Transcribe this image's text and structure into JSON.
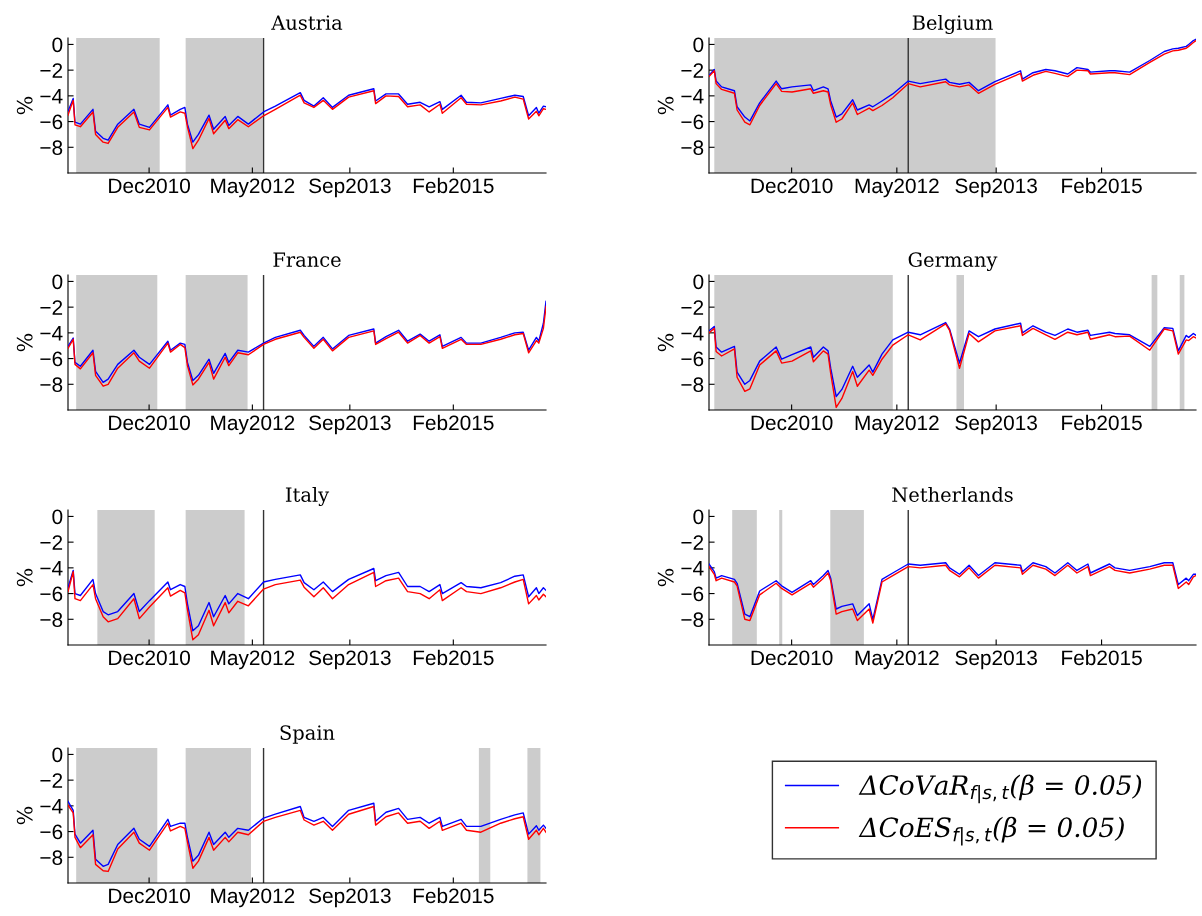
{
  "chart_data": [
    {
      "type": "line",
      "title": "Austria",
      "ylabel": "%",
      "xlim": [
        "2009-10-21",
        "2016-05-10"
      ],
      "ylim": [
        -10,
        0.5
      ],
      "xticks": [
        {
          "value": "2010-12-01",
          "label": "Dec2010"
        },
        {
          "value": "2012-05-01",
          "label": "May2012"
        },
        {
          "value": "2013-09-01",
          "label": "Sep2013"
        },
        {
          "value": "2015-02-01",
          "label": "Feb2015"
        }
      ],
      "yticks": [
        {
          "value": 0,
          "label": "0"
        },
        {
          "value": -2,
          "label": "−2"
        },
        {
          "value": -4,
          "label": "−4"
        },
        {
          "value": -6,
          "label": "−6"
        },
        {
          "value": -8,
          "label": "−8"
        }
      ],
      "grid": false,
      "legend": false,
      "x": [
        "2009-10-21",
        "2009-11-16",
        "2009-11-25",
        "2009-12-22",
        "2010-02-23",
        "2010-03-08",
        "2010-04-15",
        "2010-05-10",
        "2010-06-27",
        "2010-09-16",
        "2010-10-13",
        "2010-12-03",
        "2011-03-05",
        "2011-03-18",
        "2011-05-06",
        "2011-05-29",
        "2011-06-11",
        "2011-07-08",
        "2011-08-05",
        "2011-09-27",
        "2011-10-20",
        "2011-12-17",
        "2012-01-04",
        "2012-02-18",
        "2012-04-11",
        "2012-06-26",
        "2012-08-24",
        "2012-12-27",
        "2013-01-15",
        "2013-03-05",
        "2013-04-21",
        "2013-06-06",
        "2013-08-26",
        "2013-12-30",
        "2014-01-08",
        "2014-03-01",
        "2014-05-03",
        "2014-06-17",
        "2014-08-19",
        "2014-10-03",
        "2014-11-26",
        "2014-12-08",
        "2015-03-12",
        "2015-04-08",
        "2015-06-19",
        "2015-09-26",
        "2015-12-06",
        "2016-01-17",
        "2016-02-13",
        "2016-03-23",
        "2016-04-04",
        "2016-04-27",
        "2016-05-10"
      ],
      "bands": [
        {
          "axis": "x",
          "from": "2009-12-01",
          "to": "2011-01-23",
          "color": "#cccccc"
        },
        {
          "axis": "x",
          "from": "2011-06-02",
          "to": "2012-06-22",
          "color": "#cccccc"
        }
      ],
      "ref_lines": [
        {
          "axis": "x",
          "value": "2012-06-26",
          "color": "#333333"
        }
      ],
      "series": [
        {
          "color": "#0000ff",
          "values": [
            -5.2,
            -4.2,
            -6.05,
            -6.2,
            -5.05,
            -6.75,
            -7.3,
            -7.45,
            -6.2,
            -5.05,
            -6.2,
            -6.45,
            -4.7,
            -5.5,
            -5.05,
            -4.9,
            -6.2,
            -7.6,
            -7.0,
            -5.5,
            -6.6,
            -5.6,
            -6.3,
            -5.6,
            -6.2,
            -5.25,
            -4.8,
            -3.75,
            -4.35,
            -4.8,
            -4.15,
            -4.9,
            -3.95,
            -3.45,
            -4.4,
            -3.85,
            -3.85,
            -4.65,
            -4.5,
            -4.85,
            -4.45,
            -5.05,
            -3.95,
            -4.5,
            -4.55,
            -4.2,
            -3.95,
            -4.05,
            -5.55,
            -4.9,
            -5.35,
            -4.8,
            -4.85
          ]
        },
        {
          "color": "#ff0000",
          "values": [
            -5.5,
            -4.35,
            -6.25,
            -6.4,
            -5.25,
            -7.0,
            -7.6,
            -7.7,
            -6.45,
            -5.25,
            -6.45,
            -6.65,
            -4.9,
            -5.65,
            -5.25,
            -5.35,
            -6.4,
            -8.1,
            -7.45,
            -5.75,
            -6.95,
            -5.9,
            -6.55,
            -5.85,
            -6.4,
            -5.55,
            -5.05,
            -3.95,
            -4.55,
            -4.9,
            -4.35,
            -5.05,
            -4.1,
            -3.6,
            -4.6,
            -4.0,
            -4.05,
            -4.85,
            -4.7,
            -5.25,
            -4.65,
            -5.35,
            -4.15,
            -4.65,
            -4.7,
            -4.4,
            -4.1,
            -4.25,
            -5.8,
            -5.2,
            -5.55,
            -5.0,
            -5.05
          ]
        }
      ]
    },
    {
      "type": "line",
      "title": "Belgium",
      "ylabel": "%",
      "xlim": [
        "2009-10-21",
        "2016-05-10"
      ],
      "ylim": [
        -10,
        0.5
      ],
      "xticks": [
        {
          "value": "2010-12-01",
          "label": "Dec2010"
        },
        {
          "value": "2012-05-01",
          "label": "May2012"
        },
        {
          "value": "2013-09-01",
          "label": "Sep2013"
        },
        {
          "value": "2015-02-01",
          "label": "Feb2015"
        }
      ],
      "yticks": [
        {
          "value": 0,
          "label": "0"
        },
        {
          "value": -2,
          "label": "−2"
        },
        {
          "value": -4,
          "label": "−4"
        },
        {
          "value": -6,
          "label": "−6"
        },
        {
          "value": -8,
          "label": "−8"
        }
      ],
      "grid": false,
      "legend": false,
      "x": [
        "2009-10-21",
        "2009-11-16",
        "2009-11-25",
        "2009-12-22",
        "2010-02-23",
        "2010-03-08",
        "2010-04-15",
        "2010-05-10",
        "2010-06-27",
        "2010-09-16",
        "2010-10-13",
        "2010-12-03",
        "2011-03-05",
        "2011-03-18",
        "2011-05-06",
        "2011-05-29",
        "2011-06-11",
        "2011-07-08",
        "2011-08-05",
        "2011-09-27",
        "2011-10-20",
        "2011-12-17",
        "2012-01-04",
        "2012-02-18",
        "2012-04-11",
        "2012-06-26",
        "2012-08-24",
        "2012-12-27",
        "2013-01-15",
        "2013-03-05",
        "2013-04-21",
        "2013-06-06",
        "2013-08-26",
        "2013-12-30",
        "2014-01-08",
        "2014-03-01",
        "2014-05-03",
        "2014-06-17",
        "2014-08-19",
        "2014-10-03",
        "2014-11-26",
        "2014-12-08",
        "2015-03-12",
        "2015-04-08",
        "2015-06-19",
        "2015-09-26",
        "2015-12-06",
        "2016-01-17",
        "2016-02-13",
        "2016-03-23",
        "2016-04-04",
        "2016-04-27",
        "2016-05-10"
      ],
      "bands": [
        {
          "axis": "x",
          "from": "2009-11-16",
          "to": "2013-08-29",
          "color": "#cccccc"
        }
      ],
      "ref_lines": [
        {
          "axis": "x",
          "value": "2012-06-26",
          "color": "#333333"
        }
      ],
      "series": [
        {
          "color": "#0000ff",
          "values": [
            -2.4,
            -1.95,
            -2.85,
            -3.3,
            -3.6,
            -4.85,
            -5.65,
            -5.95,
            -4.55,
            -2.85,
            -3.45,
            -3.3,
            -3.15,
            -3.6,
            -3.3,
            -3.45,
            -4.4,
            -5.65,
            -5.4,
            -4.3,
            -5.1,
            -4.7,
            -4.85,
            -4.4,
            -3.85,
            -2.85,
            -3.05,
            -2.7,
            -2.95,
            -3.1,
            -2.95,
            -3.6,
            -2.9,
            -2.05,
            -2.7,
            -2.2,
            -1.95,
            -2.05,
            -2.3,
            -1.8,
            -1.95,
            -2.15,
            -2.05,
            -2.05,
            -2.15,
            -1.25,
            -0.55,
            -0.35,
            -0.3,
            -0.15,
            0.0,
            0.3,
            0.4
          ]
        },
        {
          "color": "#ff0000",
          "values": [
            -2.5,
            -2.05,
            -3.05,
            -3.5,
            -3.8,
            -5.1,
            -6.05,
            -6.25,
            -4.75,
            -3.05,
            -3.65,
            -3.7,
            -3.45,
            -3.8,
            -3.6,
            -3.7,
            -4.7,
            -6.05,
            -5.8,
            -4.55,
            -5.45,
            -4.95,
            -5.15,
            -4.75,
            -4.15,
            -3.05,
            -3.3,
            -2.9,
            -3.15,
            -3.3,
            -3.15,
            -3.8,
            -3.1,
            -2.25,
            -2.85,
            -2.4,
            -2.1,
            -2.25,
            -2.5,
            -2.0,
            -2.05,
            -2.3,
            -2.2,
            -2.2,
            -2.35,
            -1.4,
            -0.75,
            -0.5,
            -0.45,
            -0.3,
            -0.15,
            0.15,
            0.3
          ]
        }
      ]
    },
    {
      "type": "line",
      "title": "France",
      "ylabel": "%",
      "xlim": [
        "2009-10-21",
        "2016-05-10"
      ],
      "ylim": [
        -10,
        0.5
      ],
      "xticks": [
        {
          "value": "2010-12-01",
          "label": "Dec2010"
        },
        {
          "value": "2012-05-01",
          "label": "May2012"
        },
        {
          "value": "2013-09-01",
          "label": "Sep2013"
        },
        {
          "value": "2015-02-01",
          "label": "Feb2015"
        }
      ],
      "yticks": [
        {
          "value": 0,
          "label": "0"
        },
        {
          "value": -2,
          "label": "−2"
        },
        {
          "value": -4,
          "label": "−4"
        },
        {
          "value": -6,
          "label": "−6"
        },
        {
          "value": -8,
          "label": "−8"
        }
      ],
      "grid": false,
      "legend": false,
      "x": [
        "2009-10-21",
        "2009-11-16",
        "2009-11-25",
        "2009-12-22",
        "2010-02-23",
        "2010-03-08",
        "2010-04-15",
        "2010-05-10",
        "2010-06-27",
        "2010-09-16",
        "2010-10-13",
        "2010-12-03",
        "2011-03-05",
        "2011-03-18",
        "2011-05-06",
        "2011-05-29",
        "2011-06-11",
        "2011-07-08",
        "2011-08-05",
        "2011-09-27",
        "2011-10-20",
        "2011-12-17",
        "2012-01-04",
        "2012-02-18",
        "2012-04-11",
        "2012-06-26",
        "2012-08-24",
        "2012-12-27",
        "2013-01-15",
        "2013-03-05",
        "2013-04-21",
        "2013-06-06",
        "2013-08-26",
        "2013-12-30",
        "2014-01-08",
        "2014-03-01",
        "2014-05-03",
        "2014-06-17",
        "2014-08-19",
        "2014-10-03",
        "2014-11-26",
        "2014-12-08",
        "2015-03-12",
        "2015-04-08",
        "2015-06-19",
        "2015-09-26",
        "2015-12-06",
        "2016-01-17",
        "2016-02-13",
        "2016-03-23",
        "2016-04-04",
        "2016-04-27",
        "2016-05-10"
      ],
      "bands": [
        {
          "axis": "x",
          "from": "2009-12-01",
          "to": "2011-01-11",
          "color": "#cccccc"
        },
        {
          "axis": "x",
          "from": "2011-06-02",
          "to": "2012-04-07",
          "color": "#cccccc"
        }
      ],
      "ref_lines": [
        {
          "axis": "x",
          "value": "2012-06-26",
          "color": "#333333"
        }
      ],
      "series": [
        {
          "color": "#0000ff",
          "values": [
            -5.05,
            -4.4,
            -6.3,
            -6.6,
            -5.35,
            -7.0,
            -7.85,
            -7.6,
            -6.45,
            -5.35,
            -5.9,
            -6.45,
            -4.65,
            -5.35,
            -4.8,
            -4.9,
            -6.3,
            -7.7,
            -7.3,
            -6.05,
            -7.15,
            -5.6,
            -6.3,
            -5.35,
            -5.5,
            -4.8,
            -4.35,
            -3.8,
            -4.2,
            -5.05,
            -4.35,
            -5.25,
            -4.2,
            -3.7,
            -4.8,
            -4.3,
            -3.8,
            -4.65,
            -4.1,
            -4.65,
            -4.15,
            -5.05,
            -4.35,
            -4.8,
            -4.8,
            -4.35,
            -4.0,
            -3.95,
            -5.35,
            -4.35,
            -4.65,
            -3.25,
            -1.55
          ]
        },
        {
          "color": "#ff0000",
          "values": [
            -5.2,
            -4.5,
            -6.45,
            -6.8,
            -5.55,
            -7.3,
            -8.15,
            -8.0,
            -6.75,
            -5.55,
            -6.2,
            -6.75,
            -4.8,
            -5.5,
            -4.9,
            -5.15,
            -6.55,
            -8.05,
            -7.6,
            -6.3,
            -7.6,
            -5.9,
            -6.55,
            -5.55,
            -5.7,
            -4.9,
            -4.5,
            -3.95,
            -4.35,
            -5.2,
            -4.5,
            -5.4,
            -4.35,
            -3.85,
            -4.9,
            -4.45,
            -3.95,
            -4.8,
            -4.2,
            -4.8,
            -4.3,
            -5.2,
            -4.5,
            -4.9,
            -4.9,
            -4.5,
            -4.15,
            -4.05,
            -5.55,
            -4.6,
            -4.8,
            -3.65,
            -1.95
          ]
        }
      ]
    },
    {
      "type": "line",
      "title": "Germany",
      "ylabel": "%",
      "xlim": [
        "2009-10-21",
        "2016-05-10"
      ],
      "ylim": [
        -10,
        0.5
      ],
      "xticks": [
        {
          "value": "2010-12-01",
          "label": "Dec2010"
        },
        {
          "value": "2012-05-01",
          "label": "May2012"
        },
        {
          "value": "2013-09-01",
          "label": "Sep2013"
        },
        {
          "value": "2015-02-01",
          "label": "Feb2015"
        }
      ],
      "yticks": [
        {
          "value": 0,
          "label": "0"
        },
        {
          "value": -2,
          "label": "−2"
        },
        {
          "value": -4,
          "label": "−4"
        },
        {
          "value": -6,
          "label": "−6"
        },
        {
          "value": -8,
          "label": "−8"
        }
      ],
      "grid": false,
      "legend": false,
      "x": [
        "2009-10-21",
        "2009-11-16",
        "2009-11-25",
        "2009-12-22",
        "2010-02-23",
        "2010-03-08",
        "2010-04-15",
        "2010-05-10",
        "2010-06-27",
        "2010-09-16",
        "2010-10-13",
        "2010-12-03",
        "2011-03-05",
        "2011-03-18",
        "2011-05-06",
        "2011-05-29",
        "2011-06-11",
        "2011-07-08",
        "2011-08-05",
        "2011-09-27",
        "2011-10-20",
        "2011-12-17",
        "2012-01-04",
        "2012-02-18",
        "2012-04-11",
        "2012-06-26",
        "2012-08-24",
        "2012-12-27",
        "2013-01-15",
        "2013-03-05",
        "2013-04-21",
        "2013-06-06",
        "2013-08-26",
        "2013-12-30",
        "2014-01-08",
        "2014-03-01",
        "2014-05-03",
        "2014-06-17",
        "2014-08-19",
        "2014-10-03",
        "2014-11-26",
        "2014-12-08",
        "2015-03-12",
        "2015-04-08",
        "2015-06-19",
        "2015-09-26",
        "2015-12-06",
        "2016-01-17",
        "2016-02-13",
        "2016-03-23",
        "2016-04-04",
        "2016-04-27",
        "2016-05-10"
      ],
      "bands": [
        {
          "axis": "x",
          "from": "2009-11-16",
          "to": "2012-04-11",
          "color": "#cccccc"
        },
        {
          "axis": "x",
          "from": "2013-02-18",
          "to": "2013-03-27",
          "color": "#cccccc"
        },
        {
          "axis": "x",
          "from": "2015-10-05",
          "to": "2015-11-02",
          "color": "#cccccc"
        },
        {
          "axis": "x",
          "from": "2016-02-20",
          "to": "2016-03-14",
          "color": "#cccccc"
        }
      ],
      "ref_lines": [
        {
          "axis": "x",
          "value": "2012-06-26",
          "color": "#333333"
        }
      ],
      "series": [
        {
          "color": "#0000ff",
          "values": [
            -3.85,
            -3.5,
            -5.1,
            -5.5,
            -5.05,
            -7.05,
            -8.0,
            -7.7,
            -6.2,
            -5.1,
            -6.05,
            -5.7,
            -5.1,
            -5.9,
            -5.1,
            -5.4,
            -6.75,
            -8.95,
            -8.4,
            -6.6,
            -7.45,
            -6.5,
            -7.05,
            -5.65,
            -4.55,
            -3.95,
            -4.15,
            -3.2,
            -3.7,
            -6.35,
            -3.85,
            -4.3,
            -3.7,
            -3.25,
            -4.0,
            -3.45,
            -3.95,
            -4.2,
            -3.7,
            -3.95,
            -3.8,
            -4.2,
            -3.95,
            -4.05,
            -4.15,
            -5.05,
            -3.6,
            -3.65,
            -5.4,
            -4.2,
            -4.35,
            -4.05,
            -4.2
          ]
        },
        {
          "color": "#ff0000",
          "values": [
            -4.0,
            -3.65,
            -5.45,
            -5.8,
            -5.25,
            -7.45,
            -8.55,
            -8.35,
            -6.5,
            -5.4,
            -6.35,
            -6.2,
            -5.4,
            -6.25,
            -5.4,
            -5.65,
            -7.15,
            -9.8,
            -9.1,
            -7.0,
            -8.15,
            -6.9,
            -7.3,
            -6.05,
            -4.95,
            -4.15,
            -4.55,
            -3.3,
            -3.8,
            -6.75,
            -4.05,
            -4.7,
            -3.85,
            -3.45,
            -4.2,
            -3.65,
            -4.15,
            -4.5,
            -3.95,
            -4.15,
            -3.95,
            -4.5,
            -4.15,
            -4.3,
            -4.25,
            -5.35,
            -3.7,
            -3.85,
            -5.65,
            -4.55,
            -4.6,
            -4.3,
            -4.4
          ]
        }
      ]
    },
    {
      "type": "line",
      "title": "Italy",
      "ylabel": "%",
      "xlim": [
        "2009-10-21",
        "2016-05-10"
      ],
      "ylim": [
        -10,
        0.5
      ],
      "xticks": [
        {
          "value": "2010-12-01",
          "label": "Dec2010"
        },
        {
          "value": "2012-05-01",
          "label": "May2012"
        },
        {
          "value": "2013-09-01",
          "label": "Sep2013"
        },
        {
          "value": "2015-02-01",
          "label": "Feb2015"
        }
      ],
      "yticks": [
        {
          "value": 0,
          "label": "0"
        },
        {
          "value": -2,
          "label": "−2"
        },
        {
          "value": -4,
          "label": "−4"
        },
        {
          "value": -6,
          "label": "−6"
        },
        {
          "value": -8,
          "label": "−8"
        }
      ],
      "grid": false,
      "legend": false,
      "x": [
        "2009-10-21",
        "2009-11-16",
        "2009-11-25",
        "2009-12-22",
        "2010-02-23",
        "2010-03-08",
        "2010-04-15",
        "2010-05-10",
        "2010-06-27",
        "2010-09-16",
        "2010-10-13",
        "2010-12-03",
        "2011-03-05",
        "2011-03-18",
        "2011-05-06",
        "2011-05-29",
        "2011-06-11",
        "2011-07-08",
        "2011-08-05",
        "2011-09-27",
        "2011-10-20",
        "2011-12-17",
        "2012-01-04",
        "2012-02-18",
        "2012-04-11",
        "2012-06-26",
        "2012-08-24",
        "2012-12-27",
        "2013-01-15",
        "2013-03-05",
        "2013-04-21",
        "2013-06-06",
        "2013-08-26",
        "2013-12-30",
        "2014-01-08",
        "2014-03-01",
        "2014-05-03",
        "2014-06-17",
        "2014-08-19",
        "2014-10-03",
        "2014-11-26",
        "2014-12-08",
        "2015-03-12",
        "2015-04-08",
        "2015-06-19",
        "2015-09-26",
        "2015-12-06",
        "2016-01-17",
        "2016-02-13",
        "2016-03-23",
        "2016-04-04",
        "2016-04-27",
        "2016-05-10"
      ],
      "bands": [
        {
          "axis": "x",
          "from": "2010-03-17",
          "to": "2010-12-29",
          "color": "#cccccc"
        },
        {
          "axis": "x",
          "from": "2011-06-02",
          "to": "2012-03-23",
          "color": "#cccccc"
        }
      ],
      "ref_lines": [
        {
          "axis": "x",
          "value": "2012-06-26",
          "color": "#333333"
        }
      ],
      "series": [
        {
          "color": "#0000ff",
          "values": [
            -5.55,
            -4.2,
            -6.0,
            -6.15,
            -4.9,
            -6.0,
            -7.4,
            -7.65,
            -7.4,
            -6.0,
            -7.4,
            -6.55,
            -5.1,
            -5.7,
            -5.3,
            -5.45,
            -6.8,
            -8.9,
            -8.5,
            -6.7,
            -7.8,
            -6.15,
            -6.8,
            -6.0,
            -6.4,
            -5.1,
            -4.9,
            -4.55,
            -5.15,
            -5.7,
            -5.1,
            -5.85,
            -4.9,
            -4.05,
            -5.0,
            -4.6,
            -4.35,
            -5.45,
            -5.45,
            -5.85,
            -5.3,
            -6.0,
            -5.15,
            -5.45,
            -5.55,
            -5.15,
            -4.65,
            -4.55,
            -6.25,
            -5.55,
            -6.0,
            -5.55,
            -5.75
          ]
        },
        {
          "color": "#ff0000",
          "values": [
            -5.85,
            -4.3,
            -6.4,
            -6.55,
            -5.3,
            -6.4,
            -7.8,
            -8.2,
            -7.95,
            -6.4,
            -7.95,
            -7.05,
            -5.55,
            -6.2,
            -5.75,
            -5.95,
            -7.25,
            -9.6,
            -9.2,
            -7.3,
            -8.5,
            -6.7,
            -7.5,
            -6.6,
            -6.95,
            -5.65,
            -5.3,
            -4.95,
            -5.5,
            -6.25,
            -5.55,
            -6.4,
            -5.3,
            -4.35,
            -5.45,
            -5.0,
            -4.8,
            -5.85,
            -6.0,
            -6.4,
            -5.7,
            -6.55,
            -5.55,
            -5.85,
            -6.0,
            -5.55,
            -5.1,
            -4.9,
            -6.8,
            -6.15,
            -6.5,
            -6.05,
            -6.25
          ]
        }
      ]
    },
    {
      "type": "line",
      "title": "Netherlands",
      "ylabel": "%",
      "xlim": [
        "2009-10-21",
        "2016-05-10"
      ],
      "ylim": [
        -10,
        0.5
      ],
      "xticks": [
        {
          "value": "2010-12-01",
          "label": "Dec2010"
        },
        {
          "value": "2012-05-01",
          "label": "May2012"
        },
        {
          "value": "2013-09-01",
          "label": "Sep2013"
        },
        {
          "value": "2015-02-01",
          "label": "Feb2015"
        }
      ],
      "yticks": [
        {
          "value": 0,
          "label": "0"
        },
        {
          "value": -2,
          "label": "−2"
        },
        {
          "value": -4,
          "label": "−4"
        },
        {
          "value": -6,
          "label": "−6"
        },
        {
          "value": -8,
          "label": "−8"
        }
      ],
      "grid": false,
      "legend": false,
      "x": [
        "2009-10-21",
        "2009-11-16",
        "2009-11-25",
        "2009-12-22",
        "2010-02-23",
        "2010-03-08",
        "2010-04-15",
        "2010-05-10",
        "2010-06-27",
        "2010-09-16",
        "2010-10-13",
        "2010-12-03",
        "2011-03-05",
        "2011-03-18",
        "2011-05-06",
        "2011-05-29",
        "2011-06-11",
        "2011-07-08",
        "2011-08-05",
        "2011-09-27",
        "2011-10-20",
        "2011-12-17",
        "2012-01-04",
        "2012-02-18",
        "2012-04-11",
        "2012-06-26",
        "2012-08-24",
        "2012-12-27",
        "2013-01-15",
        "2013-03-05",
        "2013-04-21",
        "2013-06-06",
        "2013-08-26",
        "2013-12-30",
        "2014-01-08",
        "2014-03-01",
        "2014-05-03",
        "2014-06-17",
        "2014-08-19",
        "2014-10-03",
        "2014-11-26",
        "2014-12-08",
        "2015-03-12",
        "2015-04-08",
        "2015-06-19",
        "2015-09-26",
        "2015-12-06",
        "2016-01-17",
        "2016-02-13",
        "2016-03-23",
        "2016-04-04",
        "2016-04-27",
        "2016-05-10"
      ],
      "bands": [
        {
          "axis": "x",
          "from": "2010-02-12",
          "to": "2010-06-13",
          "color": "#cccccc"
        },
        {
          "axis": "x",
          "from": "2010-10-01",
          "to": "2010-10-16",
          "color": "#cccccc"
        },
        {
          "axis": "x",
          "from": "2011-06-09",
          "to": "2011-11-21",
          "color": "#cccccc"
        }
      ],
      "ref_lines": [
        {
          "axis": "x",
          "value": "2012-06-26",
          "color": "#333333"
        }
      ],
      "series": [
        {
          "color": "#0000ff",
          "values": [
            -3.7,
            -4.3,
            -4.8,
            -4.6,
            -4.9,
            -5.2,
            -7.6,
            -7.8,
            -5.8,
            -5.0,
            -5.4,
            -5.9,
            -5.0,
            -5.3,
            -4.6,
            -4.2,
            -4.8,
            -7.2,
            -7.0,
            -6.8,
            -7.7,
            -6.8,
            -8.0,
            -4.9,
            -4.4,
            -3.7,
            -3.8,
            -3.6,
            -4.0,
            -4.5,
            -3.8,
            -4.6,
            -3.6,
            -3.8,
            -4.3,
            -3.6,
            -3.9,
            -4.4,
            -3.6,
            -4.2,
            -3.7,
            -4.4,
            -3.7,
            -4.0,
            -4.2,
            -3.9,
            -3.6,
            -3.6,
            -5.3,
            -4.8,
            -5.0,
            -4.5,
            -4.5
          ]
        },
        {
          "color": "#ff0000",
          "values": [
            -3.9,
            -4.5,
            -5.0,
            -4.8,
            -5.1,
            -5.4,
            -8.0,
            -8.1,
            -6.1,
            -5.2,
            -5.6,
            -6.1,
            -5.2,
            -5.5,
            -4.8,
            -4.4,
            -5.0,
            -7.6,
            -7.4,
            -7.2,
            -8.1,
            -7.2,
            -8.3,
            -5.1,
            -4.6,
            -3.9,
            -4.0,
            -3.8,
            -4.2,
            -4.7,
            -4.0,
            -4.8,
            -3.8,
            -4.0,
            -4.5,
            -3.8,
            -4.1,
            -4.6,
            -3.8,
            -4.4,
            -3.9,
            -4.6,
            -3.9,
            -4.2,
            -4.4,
            -4.1,
            -3.8,
            -3.8,
            -5.6,
            -5.1,
            -5.3,
            -4.7,
            -4.6
          ]
        }
      ]
    },
    {
      "type": "line",
      "title": "Spain",
      "ylabel": "%",
      "xlim": [
        "2009-10-21",
        "2016-05-10"
      ],
      "ylim": [
        -10,
        0.5
      ],
      "xticks": [
        {
          "value": "2010-12-01",
          "label": "Dec2010"
        },
        {
          "value": "2012-05-01",
          "label": "May2012"
        },
        {
          "value": "2013-09-01",
          "label": "Sep2013"
        },
        {
          "value": "2015-02-01",
          "label": "Feb2015"
        }
      ],
      "yticks": [
        {
          "value": 0,
          "label": "0"
        },
        {
          "value": -2,
          "label": "−2"
        },
        {
          "value": -4,
          "label": "−4"
        },
        {
          "value": -6,
          "label": "−6"
        },
        {
          "value": -8,
          "label": "−8"
        }
      ],
      "grid": false,
      "legend": "right",
      "x": [
        "2009-10-21",
        "2009-11-16",
        "2009-11-25",
        "2009-12-22",
        "2010-02-23",
        "2010-03-08",
        "2010-04-15",
        "2010-05-10",
        "2010-06-27",
        "2010-09-16",
        "2010-10-13",
        "2010-12-03",
        "2011-03-05",
        "2011-03-18",
        "2011-05-06",
        "2011-05-29",
        "2011-06-11",
        "2011-07-08",
        "2011-08-05",
        "2011-09-27",
        "2011-10-20",
        "2011-12-17",
        "2012-01-04",
        "2012-02-18",
        "2012-04-11",
        "2012-06-26",
        "2012-08-24",
        "2012-12-27",
        "2013-01-15",
        "2013-03-05",
        "2013-04-21",
        "2013-06-06",
        "2013-08-26",
        "2013-12-30",
        "2014-01-08",
        "2014-03-01",
        "2014-05-03",
        "2014-06-17",
        "2014-08-19",
        "2014-10-03",
        "2014-11-26",
        "2014-12-08",
        "2015-03-12",
        "2015-04-08",
        "2015-06-19",
        "2015-09-26",
        "2015-12-06",
        "2016-01-17",
        "2016-02-13",
        "2016-03-23",
        "2016-04-04",
        "2016-04-27",
        "2016-05-10"
      ],
      "bands": [
        {
          "axis": "x",
          "from": "2009-12-01",
          "to": "2011-01-11",
          "color": "#cccccc"
        },
        {
          "axis": "x",
          "from": "2011-06-02",
          "to": "2012-04-24",
          "color": "#cccccc"
        },
        {
          "axis": "x",
          "from": "2015-06-09",
          "to": "2015-08-05",
          "color": "#cccccc"
        },
        {
          "axis": "x",
          "from": "2016-02-07",
          "to": "2016-04-12",
          "color": "#cccccc"
        }
      ],
      "ref_lines": [
        {
          "axis": "x",
          "value": "2012-06-26",
          "color": "#333333"
        }
      ],
      "series": [
        {
          "name": "ΔCoVaR$_{f|s,t}$(β = 0.05)",
          "color": "#0000ff",
          "values": [
            -3.65,
            -4.35,
            -6.2,
            -6.9,
            -5.9,
            -8.15,
            -8.7,
            -8.55,
            -7.0,
            -5.75,
            -6.6,
            -7.15,
            -5.05,
            -5.6,
            -5.35,
            -5.35,
            -6.45,
            -8.3,
            -7.85,
            -6.05,
            -7.0,
            -6.05,
            -6.45,
            -5.75,
            -5.9,
            -4.95,
            -4.65,
            -4.05,
            -4.9,
            -5.2,
            -4.9,
            -5.6,
            -4.35,
            -3.8,
            -5.2,
            -4.5,
            -4.2,
            -5.05,
            -4.9,
            -5.35,
            -4.9,
            -5.6,
            -5.05,
            -5.6,
            -5.6,
            -5.05,
            -4.7,
            -4.55,
            -6.2,
            -5.55,
            -5.9,
            -5.5,
            -5.75
          ]
        },
        {
          "name": "ΔCoES$_{f|s,t}$(β = 0.05)",
          "color": "#ff0000",
          "values": [
            -3.95,
            -4.55,
            -6.45,
            -7.25,
            -6.25,
            -8.55,
            -9.05,
            -9.1,
            -7.35,
            -6.05,
            -6.9,
            -7.45,
            -5.35,
            -5.95,
            -5.6,
            -5.75,
            -6.8,
            -8.85,
            -8.3,
            -6.45,
            -7.45,
            -6.45,
            -6.8,
            -6.05,
            -6.25,
            -5.2,
            -4.9,
            -4.35,
            -5.1,
            -5.5,
            -5.2,
            -5.9,
            -4.65,
            -4.05,
            -5.5,
            -4.85,
            -4.55,
            -5.35,
            -5.2,
            -5.75,
            -5.2,
            -5.9,
            -5.35,
            -5.9,
            -6.05,
            -5.35,
            -5.0,
            -4.85,
            -6.6,
            -5.9,
            -6.25,
            -5.75,
            -6.05
          ]
        }
      ]
    }
  ]
}
